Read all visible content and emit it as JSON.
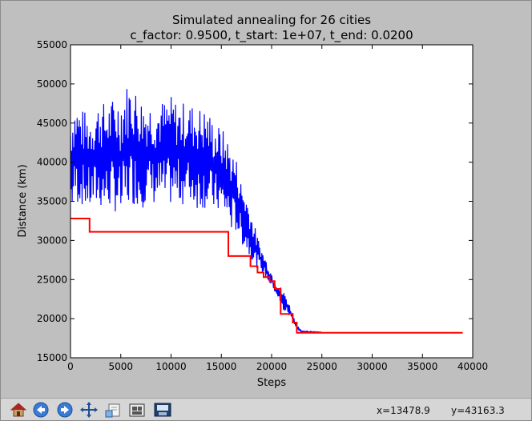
{
  "colors": {
    "figure_bg": "#bfbfbf",
    "axes_bg": "#ffffff",
    "current_series": "#0000ff",
    "best_series": "#ff0000",
    "text": "#000000"
  },
  "toolbar": {
    "icons": [
      "home-icon",
      "back-arrow-icon",
      "forward-arrow-icon",
      "pan-move-icon",
      "zoom-rectangle-icon",
      "subplot-config-icon",
      "save-icon"
    ],
    "x_readout": "x=13478.9",
    "y_readout": "y=43163.3"
  },
  "chart_data": {
    "type": "line",
    "title": "Simulated annealing for 26 cities",
    "subtitle": "c_factor: 0.9500, t_start: 1e+07, t_end: 0.0200",
    "xlabel": "Steps",
    "ylabel": "Distance (km)",
    "xlim": [
      0,
      40000
    ],
    "ylim": [
      15000,
      55000
    ],
    "xticks": [
      0,
      5000,
      10000,
      15000,
      20000,
      25000,
      30000,
      35000,
      40000
    ],
    "yticks": [
      15000,
      20000,
      25000,
      30000,
      35000,
      40000,
      45000,
      50000,
      55000
    ],
    "xtick_labels": [
      "0",
      "5000",
      "10000",
      "15000",
      "20000",
      "25000",
      "30000",
      "35000",
      "40000"
    ],
    "ytick_labels": [
      "15000",
      "20000",
      "25000",
      "30000",
      "35000",
      "40000",
      "45000",
      "50000",
      "55000"
    ],
    "grid": false,
    "series": [
      {
        "role": "current",
        "color": "#0000ff",
        "x": [
          0,
          500,
          1000,
          1500,
          2000,
          2500,
          3000,
          3500,
          4000,
          4500,
          5000,
          5500,
          6000,
          6500,
          7000,
          7500,
          8000,
          8500,
          9000,
          9500,
          10000,
          10500,
          11000,
          11500,
          12000,
          12500,
          13000,
          13500,
          14000,
          14500,
          15000,
          15500,
          16000,
          16500,
          17000,
          17500,
          18000,
          18500,
          19000,
          19500,
          20000,
          20500,
          21000,
          21500,
          22000,
          22500,
          23000,
          24000,
          25000
        ],
        "lo": [
          33000,
          34500,
          34500,
          34000,
          33500,
          34000,
          34000,
          33500,
          34000,
          33500,
          32000,
          33500,
          34500,
          34500,
          34000,
          34500,
          34500,
          34500,
          34500,
          34000,
          34500,
          34500,
          34500,
          34500,
          34500,
          34000,
          34000,
          34000,
          33500,
          33500,
          33000,
          32500,
          31000,
          31000,
          29500,
          28500,
          27500,
          26500,
          26000,
          25000,
          24000,
          23000,
          21000,
          20500,
          20000,
          18500,
          18200,
          18200,
          18200
        ],
        "hi": [
          46500,
          48000,
          47000,
          46500,
          46500,
          47500,
          48000,
          47500,
          48000,
          48500,
          49000,
          50000,
          50500,
          49500,
          48500,
          48000,
          48000,
          47500,
          48000,
          48000,
          48500,
          48000,
          47500,
          48000,
          47500,
          47500,
          47000,
          47000,
          46000,
          45000,
          44500,
          43500,
          42000,
          40500,
          37500,
          36000,
          33500,
          31000,
          29000,
          27500,
          26000,
          24500,
          24000,
          23000,
          21000,
          19500,
          18400,
          18400,
          18300
        ]
      },
      {
        "role": "best",
        "color": "#ff0000",
        "x": [
          0,
          1900,
          1900,
          15700,
          15700,
          17900,
          17900,
          18600,
          18600,
          19200,
          19200,
          19800,
          19800,
          20300,
          20300,
          20900,
          20900,
          22100,
          22100,
          22500,
          22500,
          39000
        ],
        "y": [
          32800,
          32800,
          31100,
          31100,
          28000,
          28000,
          26700,
          26700,
          25900,
          25900,
          25300,
          25300,
          24800,
          24800,
          23800,
          23800,
          20600,
          20600,
          19500,
          19500,
          18200,
          18200
        ]
      }
    ]
  }
}
